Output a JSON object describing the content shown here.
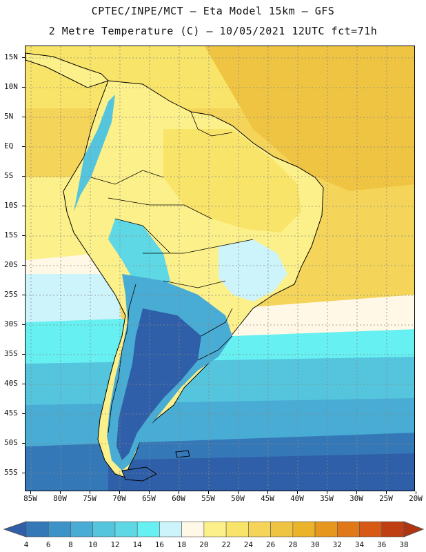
{
  "title_line1": "CPTEC/INPE/MCT –  Eta Model 15km – GFS",
  "title_line2": "2 Metre Temperature (C) – 10/05/2021 12UTC fct=71h",
  "lat_labels": [
    "15N",
    "10N",
    "5N",
    "EQ",
    "5S",
    "10S",
    "15S",
    "20S",
    "25S",
    "30S",
    "35S",
    "40S",
    "45S",
    "50S",
    "55S"
  ],
  "lon_labels": [
    "85W",
    "80W",
    "75W",
    "70W",
    "65W",
    "60W",
    "55W",
    "50W",
    "45W",
    "40W",
    "35W",
    "30W",
    "25W",
    "20W"
  ],
  "colorbar": {
    "levels": [
      "4",
      "6",
      "8",
      "10",
      "12",
      "14",
      "16",
      "18",
      "20",
      "22",
      "24",
      "26",
      "28",
      "30",
      "32",
      "34",
      "36",
      "38"
    ],
    "colors": [
      "#2f5fa8",
      "#3578b8",
      "#3d93c8",
      "#48acd4",
      "#55c5de",
      "#5fd8e6",
      "#66f0f2",
      "#ccf4fa",
      "#fff8e6",
      "#fcf08a",
      "#f9e46a",
      "#f5d45a",
      "#efc442",
      "#ebb32a",
      "#e6981e",
      "#e0781a",
      "#d65a16",
      "#c03f12",
      "#b0340e"
    ]
  },
  "palette": {
    "deep_cold": "#2f5fa8",
    "cold": "#3d93c8",
    "cool": "#55c5de",
    "light_cyan": "#66f0f2",
    "pale": "#ccf4fa",
    "cream": "#fff8e6",
    "pale_yellow": "#fcf08a",
    "yellow": "#f5d45a",
    "gold": "#efc442",
    "land_border": "#000000"
  }
}
